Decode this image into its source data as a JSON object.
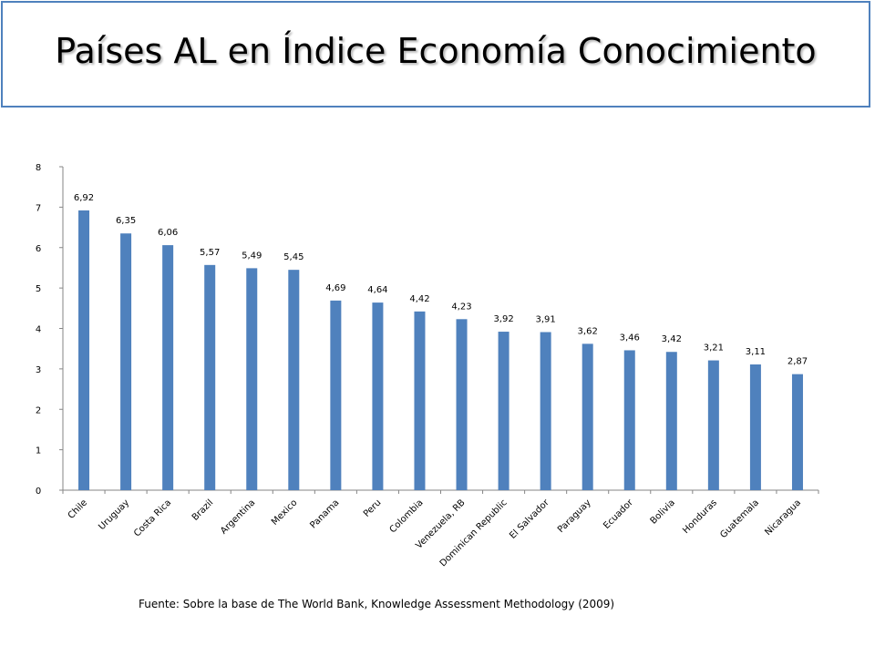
{
  "title": "Países AL en Índice Economía Conocimiento",
  "source": "Fuente: Sobre la base de The World Bank, Knowledge Assessment Methodology (2009)",
  "colors": {
    "bar": "#4f81bd",
    "title_border": "#4f81bd",
    "axis": "#868686"
  },
  "chart_data": {
    "type": "bar",
    "title": "",
    "xlabel": "",
    "ylabel": "",
    "ylim": [
      0,
      8
    ],
    "yticks": [
      0,
      1,
      2,
      3,
      4,
      5,
      6,
      7,
      8
    ],
    "grid": false,
    "legend": "none",
    "categories": [
      "Chile",
      "Uruguay",
      "Costa Rica",
      "Brazil",
      "Argentina",
      "Mexico",
      "Panama",
      "Peru",
      "Colombia",
      "Venezuela, RB",
      "Dominican Republic",
      "El Salvador",
      "Paraguay",
      "Ecuador",
      "Bolivia",
      "Honduras",
      "Guatemala",
      "Nicaragua"
    ],
    "values": [
      6.92,
      6.35,
      6.06,
      5.57,
      5.49,
      5.45,
      4.69,
      4.64,
      4.42,
      4.23,
      3.92,
      3.91,
      3.62,
      3.46,
      3.42,
      3.21,
      3.11,
      2.87
    ],
    "value_labels": [
      "6,92",
      "6,35",
      "6,06",
      "5,57",
      "5,49",
      "5,45",
      "4,69",
      "4,64",
      "4,42",
      "4,23",
      "3,92",
      "3,91",
      "3,62",
      "3,46",
      "3,42",
      "3,21",
      "3,11",
      "2,87"
    ]
  }
}
